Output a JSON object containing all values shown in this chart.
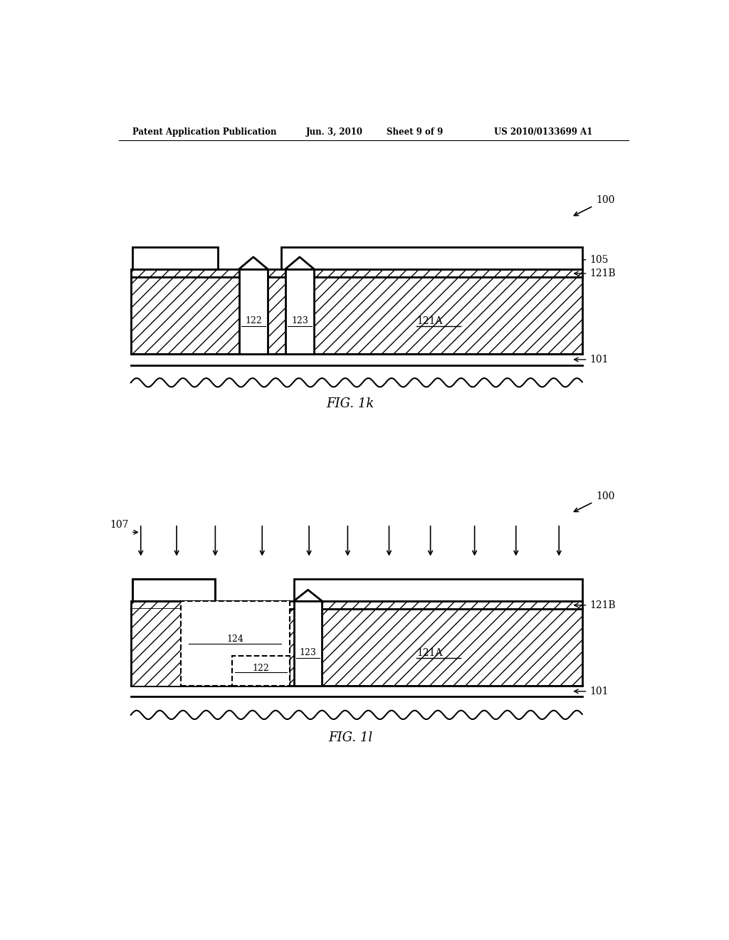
{
  "bg_color": "#ffffff",
  "line_color": "#000000",
  "fig_width": 10.24,
  "fig_height": 13.2,
  "header_text": "Patent Application Publication",
  "header_date": "Jun. 3, 2010",
  "header_sheet": "Sheet 9 of 9",
  "header_patent": "US 2010/0133699 A1",
  "fig1k_label": "FIG. 1k",
  "fig1l_label": "FIG. 1l",
  "label_100_1": "100",
  "label_100_2": "100",
  "label_105": "105",
  "label_121B_1": "121B",
  "label_121A_1": "121A",
  "label_122_1": "122",
  "label_123_1": "123",
  "label_101_1": "101",
  "label_107": "107",
  "label_121B_2": "121B",
  "label_121A_2": "121A",
  "label_122_2": "122",
  "label_123_2": "123",
  "label_124": "124",
  "label_101_2": "101",
  "hatch_density": "//"
}
